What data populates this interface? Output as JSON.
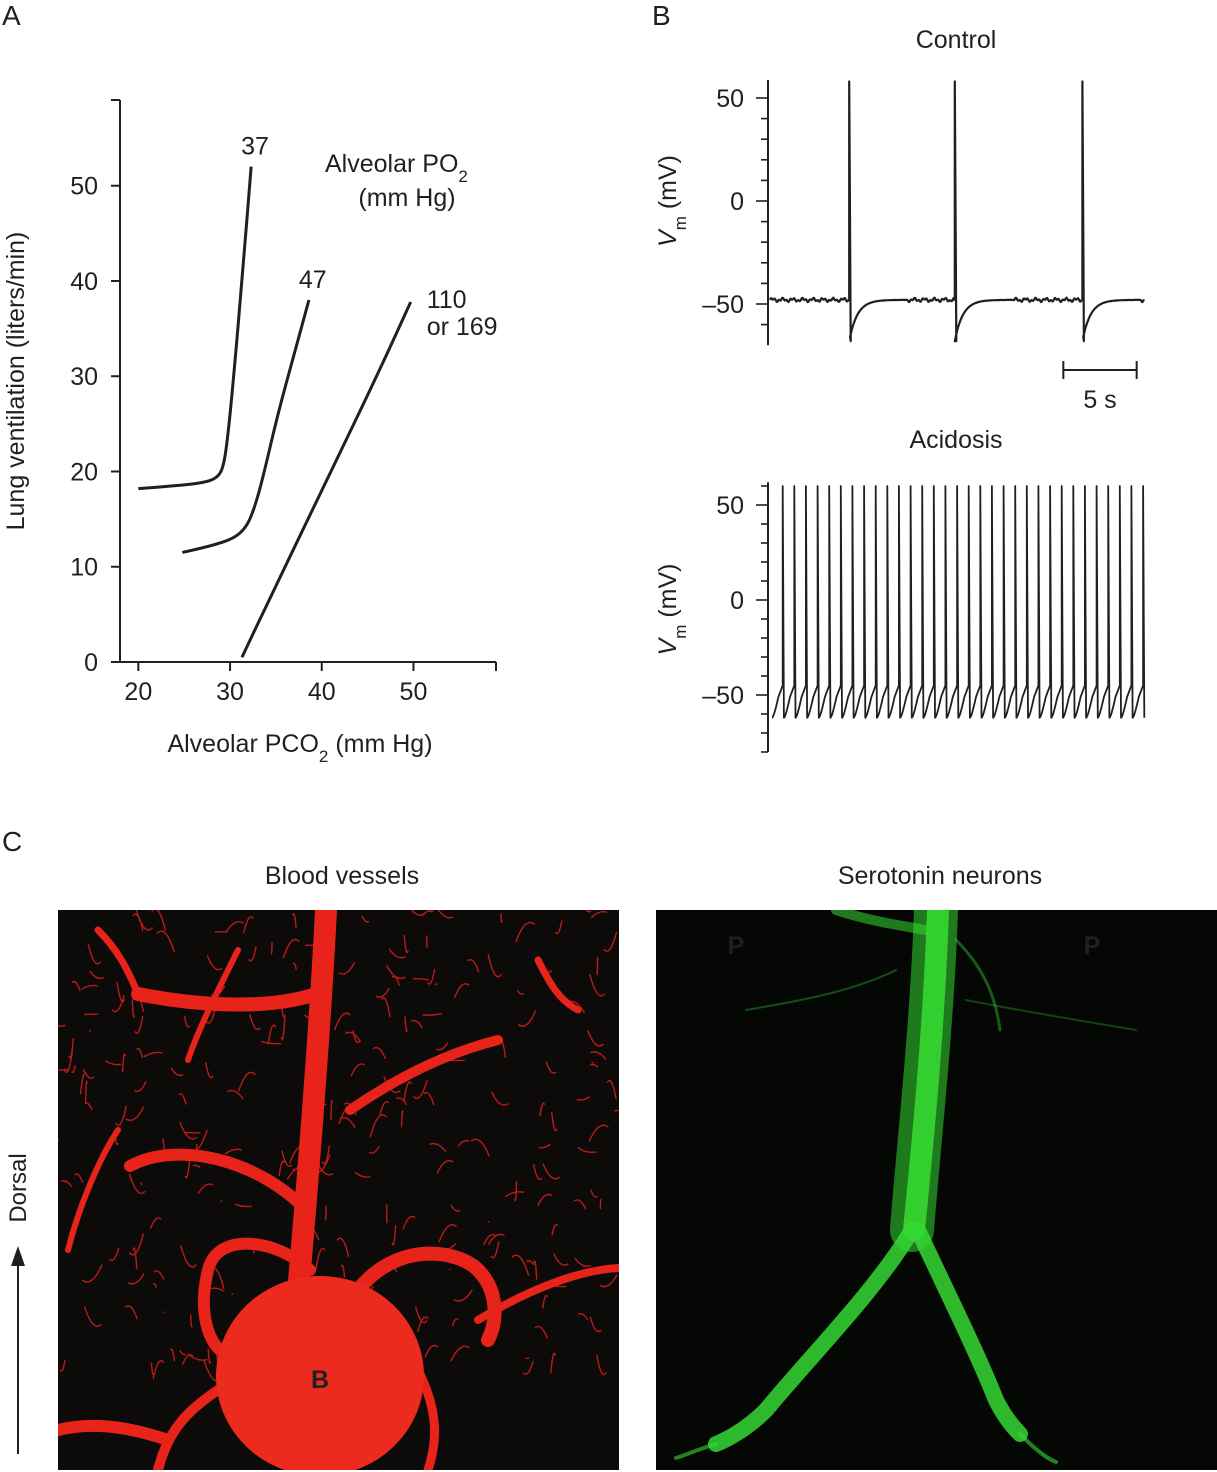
{
  "panels": {
    "a": "A",
    "b": "B",
    "c": "C"
  },
  "chart_data": [
    {
      "type": "line",
      "panel": "A",
      "xlabel_main": "Alveolar PCO",
      "xlabel_sub": "2",
      "xlabel_unit": "(mm Hg)",
      "ylabel": "Lung ventilation (liters/min)",
      "xlim": [
        18,
        59
      ],
      "ylim": [
        0,
        59
      ],
      "xticks": [
        20,
        30,
        40,
        50
      ],
      "yticks": [
        0,
        10,
        20,
        30,
        40,
        50
      ],
      "legend_title_line1_main": "Alveolar PO",
      "legend_title_line1_sub": "2",
      "legend_title_line2": "(mm Hg)",
      "series": [
        {
          "name": "37",
          "color": "#231f20",
          "points": [
            [
              20,
              18.2
            ],
            [
              24,
              18.5
            ],
            [
              27,
              18.8
            ],
            [
              28.6,
              19.3
            ],
            [
              29.3,
              20.5
            ],
            [
              29.8,
              24
            ],
            [
              30.4,
              30
            ],
            [
              31.3,
              40
            ],
            [
              32.3,
              52
            ]
          ]
        },
        {
          "name": "47",
          "color": "#231f20",
          "points": [
            [
              24.8,
              11.5
            ],
            [
              28,
              12.2
            ],
            [
              30.5,
              13
            ],
            [
              31.8,
              14.2
            ],
            [
              32.6,
              16
            ],
            [
              33.5,
              19
            ],
            [
              35.2,
              26
            ],
            [
              36.9,
              32
            ],
            [
              38.6,
              38
            ]
          ]
        },
        {
          "name_line1": "110",
          "name_line2": "or 169",
          "color": "#231f20",
          "points": [
            [
              31.3,
              0.5
            ],
            [
              34,
              6
            ],
            [
              40,
              18
            ],
            [
              46,
              30
            ],
            [
              49.7,
              37.8
            ]
          ]
        }
      ]
    },
    {
      "type": "line",
      "panel": "B",
      "title": "Control",
      "ylabel_main": "V",
      "ylabel_sub": "m",
      "ylabel_unit": "(mV)",
      "ylim": [
        -70,
        62
      ],
      "yticks": [
        -50,
        0,
        50
      ],
      "yticklabels": [
        "–50",
        "0",
        "50"
      ],
      "duration_s": 25.5,
      "resting_mV": -48,
      "peak_mV": 58,
      "trough_mV": -68,
      "spike_times_s": [
        5.4,
        12.6,
        21.3
      ],
      "scalebar": {
        "length_s": 5,
        "label": "5 s"
      }
    },
    {
      "type": "line",
      "panel": "B",
      "title": "Acidosis",
      "ylabel_main": "V",
      "ylabel_sub": "m",
      "ylabel_unit": "(mV)",
      "ylim": [
        -80,
        62
      ],
      "yticks": [
        -50,
        0,
        50
      ],
      "yticklabels": [
        "–50",
        "0",
        "50"
      ],
      "duration_s": 25.5,
      "baseline_low_mV": -62,
      "threshold_mV": -45,
      "peak_mV": 60,
      "spike_count": 32
    }
  ],
  "images": {
    "left": {
      "title": "Blood vessels",
      "label_b": "B",
      "vessel_color": "#e8231a"
    },
    "right": {
      "title": "Serotonin neurons",
      "label_p": "P",
      "neuron_color": "#3ee83a"
    }
  },
  "orientation": {
    "label": "Dorsal"
  }
}
